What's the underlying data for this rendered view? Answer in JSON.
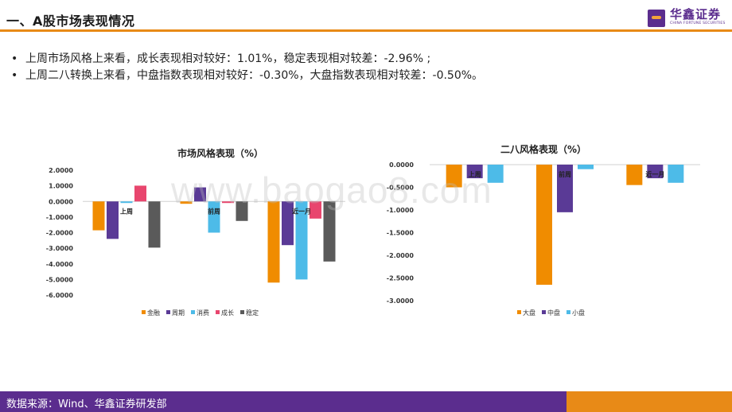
{
  "header": {
    "title": "一、A股市场表现情况",
    "logo_cn": "华鑫证券",
    "logo_en": "CHINA FORTUNE SECURITIES"
  },
  "bullets": [
    "上周市场风格上来看，成长表现相对较好：1.01%，稳定表现相对较差：-2.96% ;",
    "上周二八转换上来看，中盘指数表现相对较好：-0.30%，大盘指数表现相对较差：-0.50%。"
  ],
  "watermark": "www.baogao8.com",
  "footer": {
    "source": "数据来源：Wind、华鑫证券研发部"
  },
  "colors": {
    "accent": "#e88a17",
    "brand": "#5b2d8e",
    "series": [
      "#f08c00",
      "#5a3a96",
      "#4dbbe8",
      "#e8466e",
      "#5a5a5a"
    ]
  },
  "chart_data": [
    {
      "type": "bar",
      "title": "市场风格表现（%）",
      "categories": [
        "上周",
        "前周",
        "近一月"
      ],
      "series": [
        {
          "name": "金融",
          "values": [
            -1.85,
            -0.15,
            -5.2
          ]
        },
        {
          "name": "周期",
          "values": [
            -2.4,
            0.9,
            -2.8
          ]
        },
        {
          "name": "消费",
          "values": [
            -0.1,
            -2.0,
            -5.0
          ]
        },
        {
          "name": "成长",
          "values": [
            1.01,
            -0.1,
            -1.1
          ]
        },
        {
          "name": "稳定",
          "values": [
            -2.96,
            -1.25,
            -3.85
          ]
        }
      ],
      "yticks": [
        "2.0000",
        "1.0000",
        "0.0000",
        "-1.0000",
        "-2.0000",
        "-3.0000",
        "-4.0000",
        "-5.0000",
        "-6.0000"
      ],
      "ylim": [
        -6,
        2
      ],
      "legend": "bottom"
    },
    {
      "type": "bar",
      "title": "二八风格表现（%）",
      "categories": [
        "上周",
        "前周",
        "近一月"
      ],
      "series": [
        {
          "name": "大盘",
          "values": [
            -0.5,
            -2.65,
            -0.45
          ]
        },
        {
          "name": "中盘",
          "values": [
            -0.3,
            -1.05,
            -0.3
          ]
        },
        {
          "name": "小盘",
          "values": [
            -0.4,
            -0.1,
            -0.4
          ]
        }
      ],
      "yticks": [
        "0.0000",
        "-0.5000",
        "-1.0000",
        "-1.5000",
        "-2.0000",
        "-2.5000",
        "-3.0000"
      ],
      "ylim": [
        -3,
        0
      ],
      "legend": "bottom"
    }
  ]
}
